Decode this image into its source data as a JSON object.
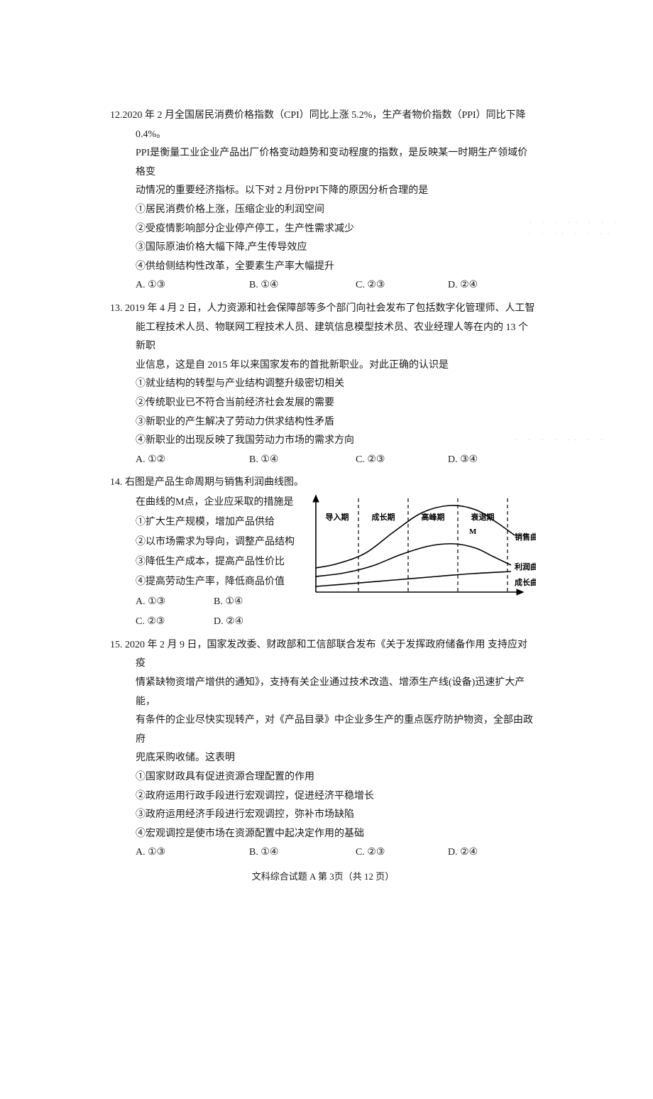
{
  "q12": {
    "num": "12.",
    "stem1": "2020 年 2 月全国居民消费价格指数（CPI）同比上涨 5.2%，生产者物价指数（PPI）同比下降  0.4%。",
    "stem2": "PPI是衡量工业企业产品出厂价格变动趋势和变动程度的指数，是反映某一时期生产领域价格变",
    "stem3": "动情况的重要经济指标。以下对 2 月份PPI下降的原因分析合理的是",
    "s1": "①居民消费价格上涨，压缩企业的利润空间",
    "s2": "②受疫情影响部分企业停产停工，生产性需求减少",
    "s3": "③国际原油价格大幅下降,产生传导效应",
    "s4": "④供给侧结构性改革，全要素生产率大幅提升",
    "A": "A.  ①③",
    "B": "B.  ①④",
    "C": "C.  ②③",
    "D": "D.  ②④"
  },
  "q13": {
    "num": "13.",
    "stem1": " 2019 年 4 月 2 日，人力资源和社会保障部等多个部门向社会发布了包括数字化管理师、人工智",
    "stem2": "能工程技术人员、物联网工程技术人员、建筑信息模型技术员、农业经理人等在内的 13 个新职",
    "stem3": "业信息，这是自 2015 年以来国家发布的首批新职业。对此正确的认识是",
    "s1": "①就业结构的转型与产业结构调整升级密切相关",
    "s2": "②传统职业已不符合当前经济社会发展的需要",
    "s3": "③新职业的产生解决了劳动力供求结构性矛盾",
    "s4": "④新职业的出现反映了我国劳动力市场的需求方向",
    "A": "A.  ①②",
    "B": "B.  ①④",
    "C": "C.  ②③",
    "D": "D.  ③④"
  },
  "q14": {
    "num": "14.",
    "stem": " 右图是产品生命周期与销售利润曲线图。",
    "l1": "在曲线的M点，企业应采取的措施是",
    "l2": "①扩大生产规模，增加产品供给",
    "l3": "②以市场需求为导向，调整产品结构",
    "l4": "③降低生产成本，提高产品性价比",
    "l5": "④提高劳动生产率，降低商品价值",
    "A": "A.  ①③",
    "B": "B.  ①④",
    "C": "C.  ②③",
    "D": "D.  ②④",
    "chart": {
      "type": "line",
      "phases": [
        "导入期",
        "成长期",
        "高峰期",
        "衰退期"
      ],
      "curve_labels": {
        "sales": "销售曲线",
        "profit": "利润曲线",
        "growth": "成长曲线"
      },
      "point_label": "M",
      "colors": {
        "axis": "#000000",
        "dashed": "#000000",
        "sales": "#000000",
        "profit": "#000000",
        "growth": "#000000",
        "text": "#000000"
      },
      "stroke_width": {
        "curve": 1.6,
        "axis": 1.6,
        "dash": 1.2
      },
      "dash": "5,4",
      "font_size": 11,
      "sales_path": [
        [
          10,
          106
        ],
        [
          40,
          100
        ],
        [
          80,
          85
        ],
        [
          120,
          55
        ],
        [
          160,
          28
        ],
        [
          200,
          18
        ],
        [
          235,
          24
        ],
        [
          265,
          42
        ],
        [
          290,
          60
        ]
      ],
      "profit_path": [
        [
          10,
          118
        ],
        [
          50,
          113
        ],
        [
          90,
          103
        ],
        [
          130,
          87
        ],
        [
          170,
          75
        ],
        [
          205,
          72
        ],
        [
          235,
          78
        ],
        [
          260,
          90
        ],
        [
          285,
          102
        ]
      ],
      "growth_path": [
        [
          10,
          132
        ],
        [
          60,
          128
        ],
        [
          120,
          123
        ],
        [
          180,
          118
        ],
        [
          230,
          114
        ],
        [
          285,
          111
        ]
      ],
      "dash_x": [
        70,
        140,
        210,
        280
      ],
      "m_point": [
        222,
        20
      ]
    }
  },
  "q15": {
    "num": "15.",
    "stem1": " 2020 年 2 月 9 日，国家发改委、财政部和工信部联合发布《关于发挥政府储备作用  支持应对疫",
    "stem2": "情紧缺物资增产增供的通知》，支持有关企业通过技术改造、增添生产线(设备)迅速扩大产能，",
    "stem3": "有条件的企业尽快实现转产，对《产品目录》中企业多生产的重点医疗防护物资，全部由政府",
    "stem4": "兜底采购收储。这表明",
    "s1": "①国家财政具有促进资源合理配置的作用",
    "s2": "②政府运用行政手段进行宏观调控，促进经济平稳增长",
    "s3": "③政府运用经济手段进行宏观调控，弥补市场缺陷",
    "s4": "④宏观调控是使市场在资源配置中起决定作用的基础",
    "A": "A.  ①③",
    "B": "B.  ①④",
    "C": "C.  ②③",
    "D": "D.  ②④"
  },
  "footer": "文科综合试题 A    第 3页（共 12 页）"
}
